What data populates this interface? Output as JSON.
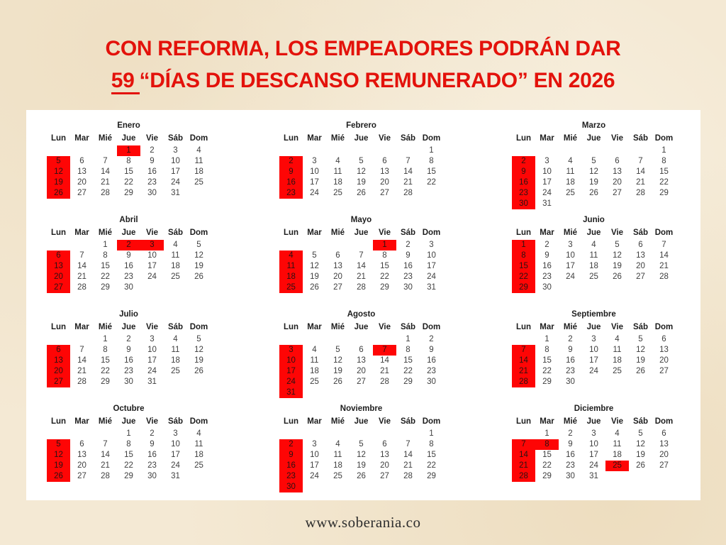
{
  "title": {
    "line1": "CON REFORMA, LOS EMPEADORES PODRÁN DAR",
    "line2_number": "59",
    "line2_rest": "“DÍAS DE DESCANSO REMUNERADO” EN 2026"
  },
  "footer": "www.soberania.co",
  "colors": {
    "title_red": "#e3120b",
    "highlight_red": "#fe0505",
    "background_parchment": "#f4e9d4",
    "card_white": "#ffffff",
    "day_text": "#3f3f3f"
  },
  "calendar": {
    "year": "2026",
    "day_headers": [
      "Lun",
      "Mar",
      "Mié",
      "Jue",
      "Vie",
      "Sáb",
      "Dom"
    ],
    "months": [
      {
        "name": "Enero",
        "first_dow": 3,
        "days": 31,
        "highlighted": [
          1,
          5,
          12,
          19,
          26
        ]
      },
      {
        "name": "Febrero",
        "first_dow": 6,
        "days": 28,
        "highlighted": [
          2,
          9,
          16,
          23
        ]
      },
      {
        "name": "Marzo",
        "first_dow": 6,
        "days": 31,
        "highlighted": [
          2,
          9,
          16,
          23,
          30
        ]
      },
      {
        "name": "Abril",
        "first_dow": 2,
        "days": 30,
        "highlighted": [
          2,
          3,
          6,
          13,
          20,
          27
        ]
      },
      {
        "name": "Mayo",
        "first_dow": 4,
        "days": 31,
        "highlighted": [
          1,
          4,
          11,
          18,
          25
        ]
      },
      {
        "name": "Junio",
        "first_dow": 0,
        "days": 30,
        "highlighted": [
          1,
          8,
          15,
          22,
          29
        ]
      },
      {
        "name": "Julio",
        "first_dow": 2,
        "days": 31,
        "highlighted": [
          6,
          13,
          20,
          27
        ]
      },
      {
        "name": "Agosto",
        "first_dow": 5,
        "days": 31,
        "highlighted": [
          3,
          7,
          10,
          17,
          24,
          31
        ]
      },
      {
        "name": "Septiembre",
        "first_dow": 1,
        "days": 30,
        "highlighted": [
          7,
          14,
          21,
          28
        ]
      },
      {
        "name": "Octubre",
        "first_dow": 3,
        "days": 31,
        "highlighted": [
          5,
          12,
          19,
          26
        ]
      },
      {
        "name": "Noviembre",
        "first_dow": 6,
        "days": 30,
        "highlighted": [
          2,
          9,
          16,
          23,
          30
        ]
      },
      {
        "name": "Diciembre",
        "first_dow": 1,
        "days": 31,
        "highlighted": [
          7,
          8,
          14,
          21,
          25,
          28
        ]
      }
    ]
  }
}
